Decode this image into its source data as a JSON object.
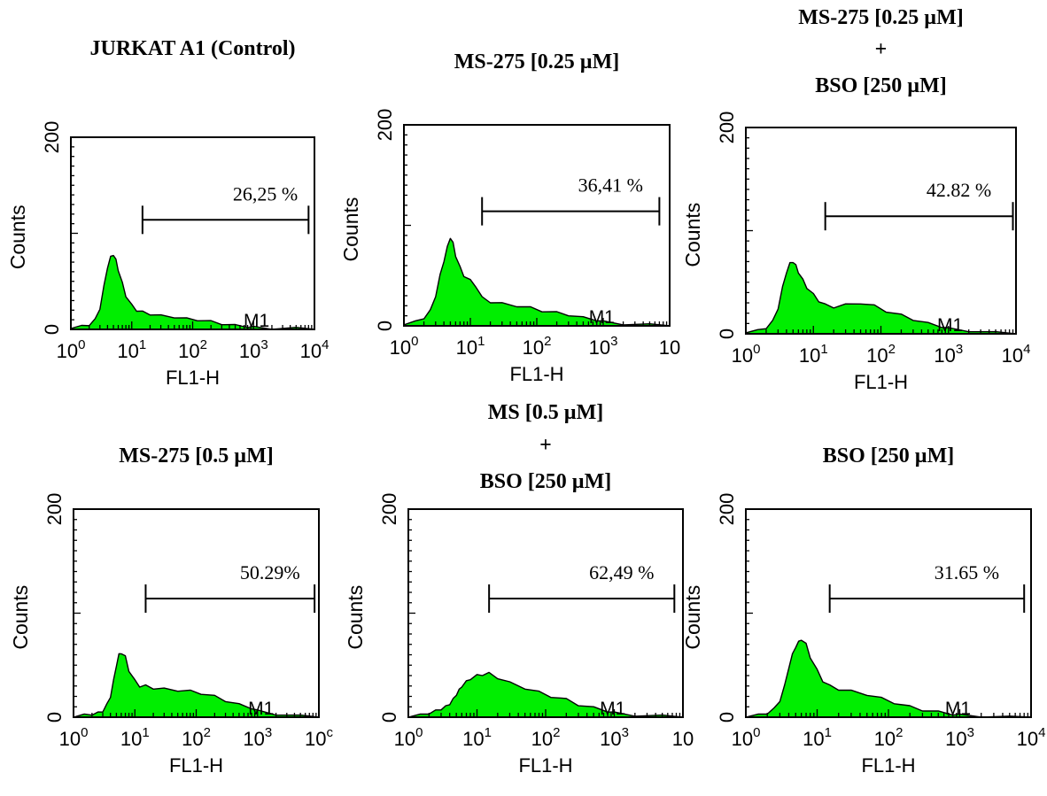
{
  "chart_data": [
    {
      "type": "histogram",
      "title_lines": [
        "JURKAT A1 (Control)"
      ],
      "xlabel": "FL1-H",
      "ylabel": "Counts",
      "x_scale": "log",
      "xlim": [
        1,
        10000
      ],
      "ylim": [
        0,
        200
      ],
      "y_ticks": [
        "0",
        "200"
      ],
      "x_ticks": [
        "10^0",
        "10^1",
        "10^2",
        "10^3",
        "10^4"
      ],
      "gate": {
        "label": "M1",
        "start": 15,
        "end": 8000,
        "percent_text": "26,25 %"
      },
      "histogram": {
        "x": [
          1,
          1.5,
          2,
          2.5,
          3,
          3.5,
          4,
          4.5,
          5,
          5.5,
          6,
          7,
          8,
          10,
          12,
          15,
          20,
          30,
          50,
          80,
          120,
          200,
          300,
          500,
          800,
          1000,
          2000,
          5000,
          10000
        ],
        "y": [
          2,
          3,
          5,
          10,
          22,
          45,
          65,
          75,
          78,
          72,
          62,
          48,
          35,
          25,
          20,
          18,
          16,
          14,
          13,
          11,
          10,
          8,
          6,
          4,
          3,
          2,
          1,
          1,
          0
        ]
      }
    },
    {
      "type": "histogram",
      "title_lines": [
        "MS-275 [0.25 µM]"
      ],
      "xlabel": "FL1-H",
      "ylabel": "Counts",
      "x_scale": "log",
      "xlim": [
        1,
        10000
      ],
      "ylim": [
        0,
        200
      ],
      "y_ticks": [
        "0",
        "200"
      ],
      "x_ticks": [
        "10^0",
        "10^1",
        "10^2",
        "10^3",
        "10"
      ],
      "gate": {
        "label": "M1",
        "start": 15,
        "end": 7000,
        "percent_text": "36,41 %"
      },
      "histogram": {
        "x": [
          1,
          1.5,
          2,
          2.5,
          3,
          3.5,
          4,
          4.5,
          5,
          5.5,
          6,
          7,
          8,
          10,
          12,
          15,
          20,
          30,
          50,
          80,
          120,
          200,
          300,
          500,
          800,
          1000,
          2000,
          5000,
          10000
        ],
        "y": [
          2,
          4,
          8,
          15,
          30,
          50,
          65,
          78,
          88,
          82,
          70,
          58,
          50,
          45,
          40,
          28,
          24,
          22,
          20,
          18,
          15,
          13,
          11,
          8,
          6,
          4,
          2,
          1,
          0
        ]
      }
    },
    {
      "type": "histogram",
      "title_lines": [
        "MS-275 [0.25 µM]",
        "+",
        "BSO [250 µM]"
      ],
      "xlabel": "FL1-H",
      "ylabel": "Counts",
      "x_scale": "log",
      "xlim": [
        1,
        10000
      ],
      "ylim": [
        0,
        200
      ],
      "y_ticks": [
        "0",
        "200"
      ],
      "x_ticks": [
        "10^0",
        "10^1",
        "10^2",
        "10^3",
        "10^4"
      ],
      "gate": {
        "label": "M1",
        "start": 15,
        "end": 9000,
        "percent_text": "42.82 %"
      },
      "histogram": {
        "x": [
          1,
          1.5,
          2,
          2.5,
          3,
          3.5,
          4,
          4.5,
          5,
          5.5,
          6,
          7,
          8,
          10,
          12,
          15,
          20,
          30,
          50,
          80,
          120,
          200,
          300,
          500,
          800,
          1000,
          2000,
          5000,
          10000
        ],
        "y": [
          2,
          3,
          6,
          12,
          25,
          45,
          60,
          68,
          70,
          66,
          60,
          52,
          45,
          38,
          32,
          28,
          26,
          28,
          30,
          27,
          22,
          18,
          14,
          10,
          7,
          5,
          3,
          1,
          0
        ]
      }
    },
    {
      "type": "histogram",
      "title_lines": [
        "MS-275 [0.5 µM]"
      ],
      "xlabel": "FL1-H",
      "ylabel": "Counts",
      "x_scale": "log",
      "xlim": [
        1,
        10000
      ],
      "ylim": [
        0,
        200
      ],
      "y_ticks": [
        "0",
        "200"
      ],
      "x_ticks": [
        "10^0",
        "10^1",
        "10^2",
        "10^3",
        "10^c"
      ],
      "gate": {
        "label": "M1",
        "start": 15,
        "end": 8500,
        "percent_text": "50.29%"
      },
      "histogram": {
        "x": [
          1,
          1.5,
          2,
          2.5,
          3,
          3.5,
          4,
          4.5,
          5,
          5.5,
          6,
          7,
          8,
          10,
          12,
          15,
          20,
          30,
          50,
          80,
          120,
          200,
          300,
          500,
          800,
          1000,
          2000,
          5000,
          10000
        ],
        "y": [
          1,
          2,
          3,
          4,
          6,
          12,
          20,
          35,
          50,
          60,
          62,
          58,
          45,
          35,
          30,
          30,
          28,
          27,
          26,
          25,
          23,
          20,
          16,
          12,
          9,
          6,
          3,
          1,
          0
        ]
      }
    },
    {
      "type": "histogram",
      "title_lines": [
        "MS [0.5 µM]",
        "+",
        "BSO [250 µM]"
      ],
      "xlabel": "FL1-H",
      "ylabel": "Counts",
      "x_scale": "log",
      "xlim": [
        1,
        10000
      ],
      "ylim": [
        0,
        200
      ],
      "y_ticks": [
        "0",
        "200"
      ],
      "x_ticks": [
        "10^0",
        "10^1",
        "10^2",
        "10^3",
        "10"
      ],
      "gate": {
        "label": "M1",
        "start": 15,
        "end": 7500,
        "percent_text": "62,49 %"
      },
      "histogram": {
        "x": [
          1,
          1.5,
          2,
          2.5,
          3,
          3.5,
          4,
          4.5,
          5,
          5.5,
          6,
          7,
          8,
          10,
          12,
          15,
          20,
          30,
          50,
          80,
          120,
          200,
          300,
          500,
          800,
          1000,
          2000,
          5000,
          10000
        ],
        "y": [
          1,
          2,
          4,
          6,
          8,
          10,
          13,
          17,
          22,
          26,
          30,
          34,
          37,
          40,
          41,
          42,
          38,
          33,
          28,
          24,
          20,
          17,
          12,
          9,
          6,
          4,
          2,
          1,
          0
        ]
      }
    },
    {
      "type": "histogram",
      "title_lines": [
        "BSO [250 µM]"
      ],
      "xlabel": "FL1-H",
      "ylabel": "Counts",
      "x_scale": "log",
      "xlim": [
        1,
        10000
      ],
      "ylim": [
        0,
        200
      ],
      "y_ticks": [
        "0",
        "200"
      ],
      "x_ticks": [
        "10^0",
        "10^1",
        "10^2",
        "10^3",
        "10^4"
      ],
      "gate": {
        "label": "M1",
        "start": 15,
        "end": 8000,
        "percent_text": "31.65 %"
      },
      "histogram": {
        "x": [
          1,
          1.5,
          2,
          2.5,
          3,
          3.5,
          4,
          4.5,
          5,
          5.5,
          6,
          7,
          8,
          10,
          12,
          15,
          20,
          30,
          50,
          80,
          120,
          200,
          300,
          500,
          800,
          1000,
          2000,
          5000,
          10000
        ],
        "y": [
          1,
          2,
          4,
          8,
          16,
          30,
          48,
          60,
          68,
          72,
          75,
          70,
          58,
          45,
          35,
          30,
          27,
          25,
          22,
          18,
          14,
          10,
          7,
          5,
          3,
          2,
          1,
          0,
          0
        ]
      }
    }
  ]
}
